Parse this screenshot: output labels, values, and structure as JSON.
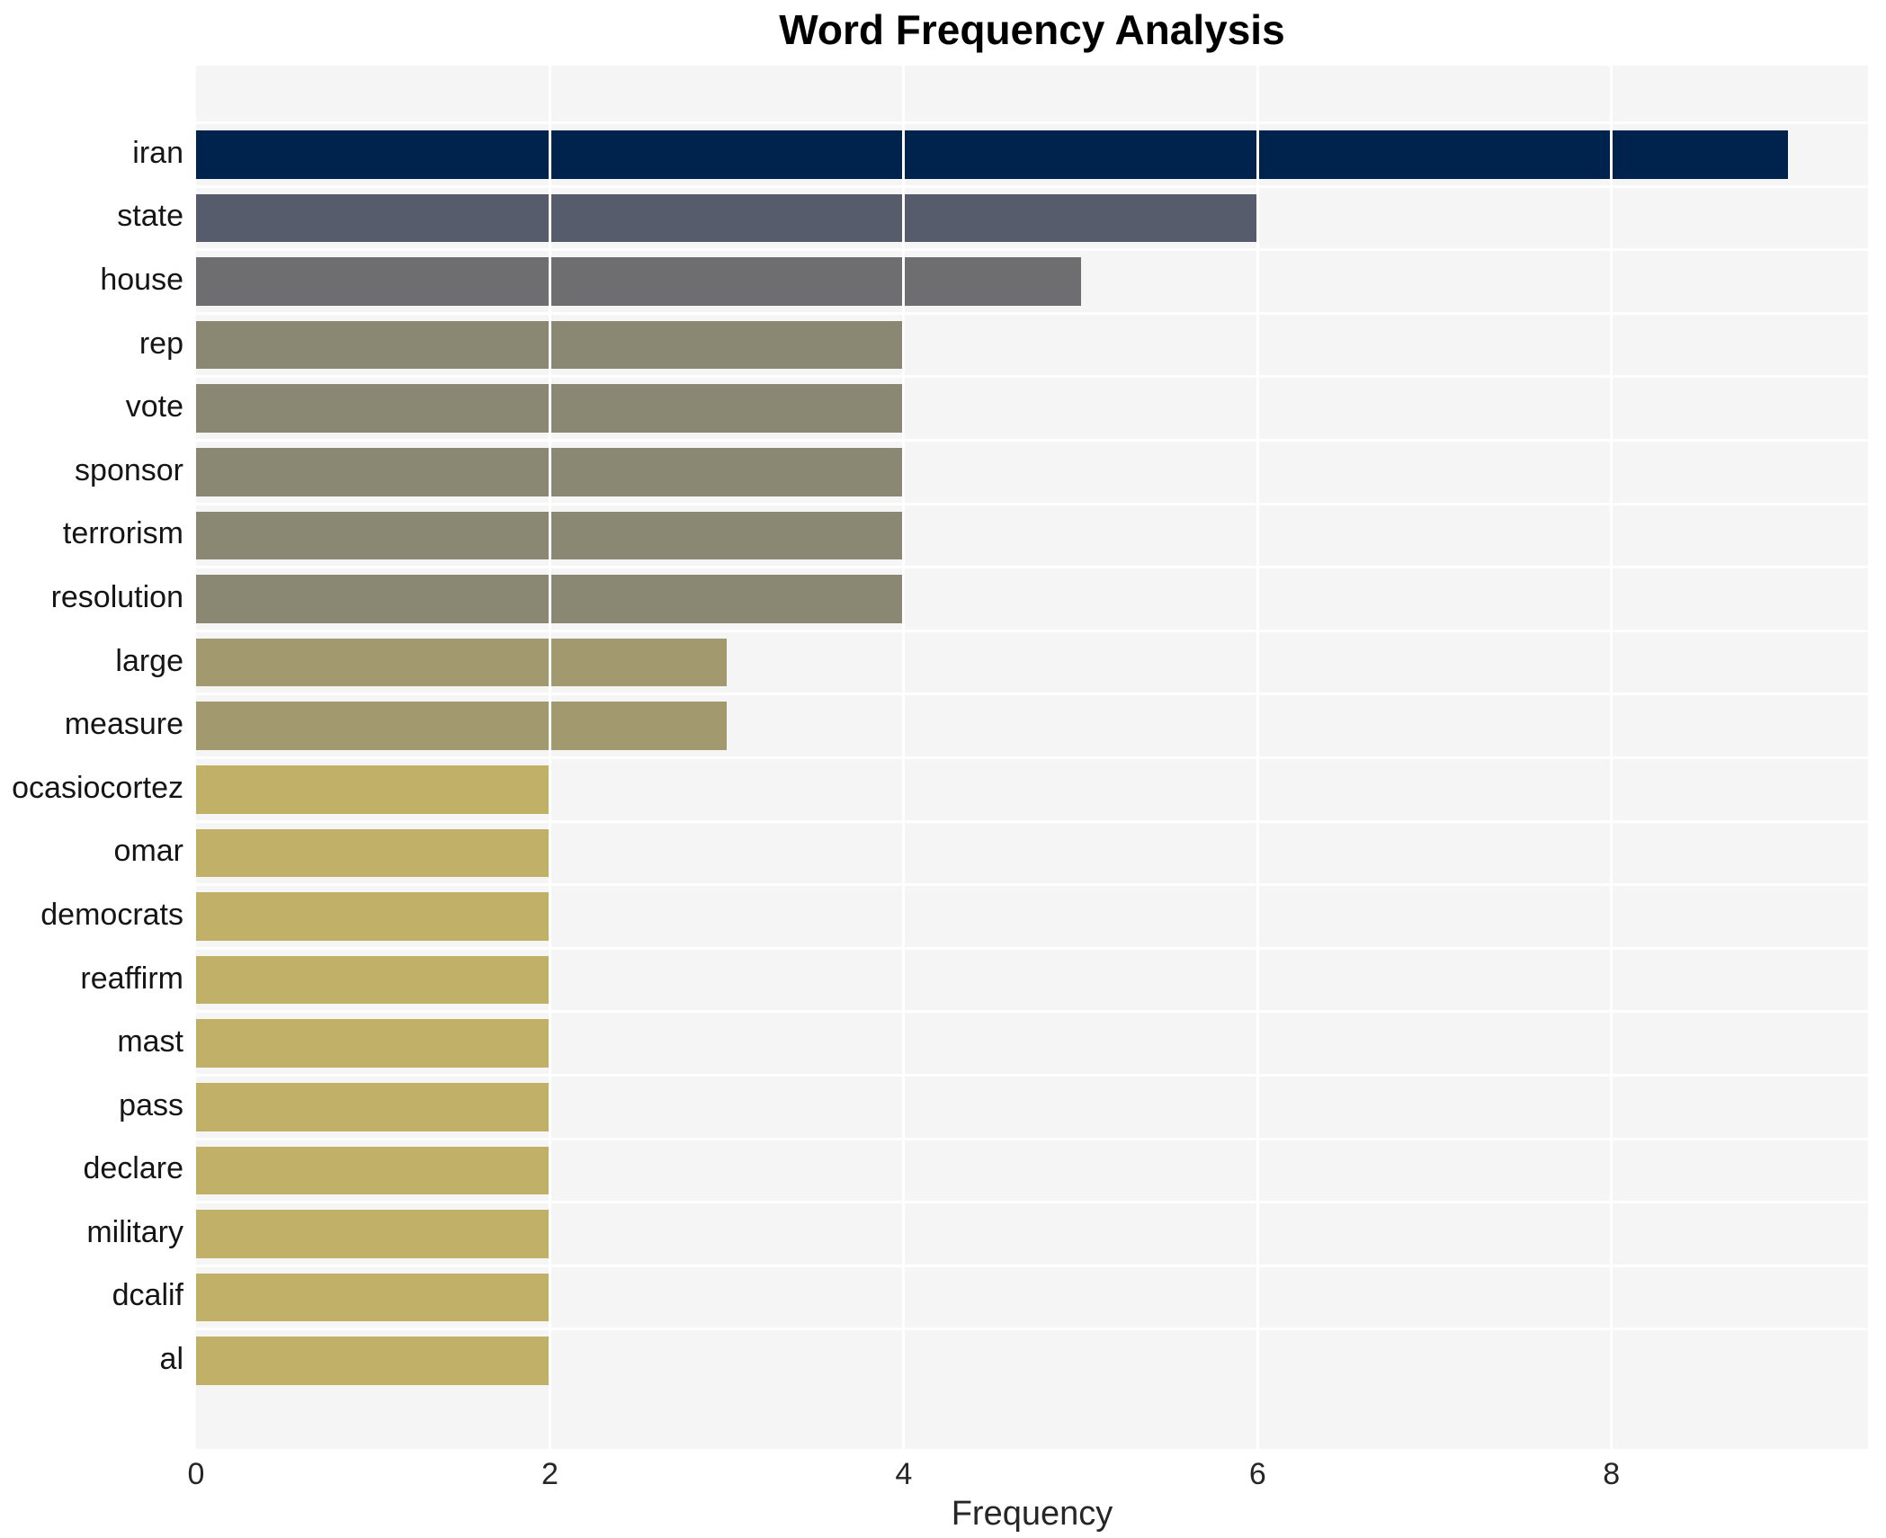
{
  "title": "Word Frequency Analysis",
  "chart_data": {
    "type": "bar",
    "orientation": "horizontal",
    "title": "Word Frequency Analysis",
    "xlabel": "Frequency",
    "ylabel": "",
    "categories": [
      "iran",
      "state",
      "house",
      "rep",
      "vote",
      "sponsor",
      "terrorism",
      "resolution",
      "large",
      "measure",
      "ocasiocortez",
      "omar",
      "democrats",
      "reaffirm",
      "mast",
      "pass",
      "declare",
      "military",
      "dcalif",
      "al"
    ],
    "values": [
      9,
      6,
      5,
      4,
      4,
      4,
      4,
      4,
      3,
      3,
      2,
      2,
      2,
      2,
      2,
      2,
      2,
      2,
      2,
      2
    ],
    "bar_colors": [
      "#00234d",
      "#565c6c",
      "#6e6e70",
      "#8a8773",
      "#8a8773",
      "#8a8773",
      "#8a8773",
      "#8a8773",
      "#a29a6e",
      "#a29a6e",
      "#c1b068",
      "#c1b068",
      "#c1b068",
      "#c1b068",
      "#c1b068",
      "#c1b068",
      "#c1b068",
      "#c1b068",
      "#c1b068",
      "#c1b068"
    ],
    "xlim": [
      0,
      9.45
    ],
    "xticks": [
      0,
      2,
      4,
      6,
      8
    ],
    "grid": {
      "vertical_at": [
        2,
        4,
        6,
        8
      ],
      "color": "#ffffff"
    },
    "plot_background": "#f5f5f6",
    "figure_background": "#ffffff",
    "legend_position": "none",
    "bar_height_fraction": 0.8
  }
}
